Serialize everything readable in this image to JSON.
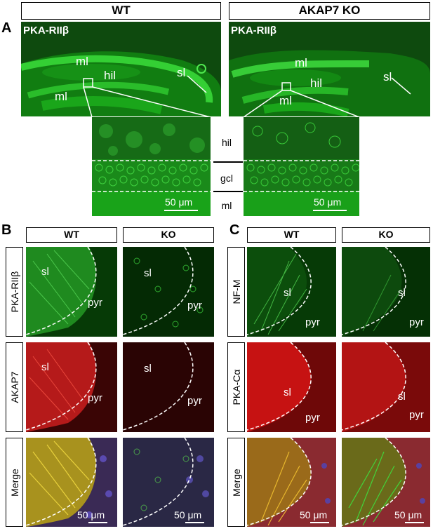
{
  "panel_a": {
    "letter": "A",
    "col_headers": [
      "WT",
      "AKAP7 KO"
    ],
    "stain_label": "PKA-RIIβ",
    "wt_region_labels": [
      "ml",
      "hil",
      "ml",
      "sl"
    ],
    "ko_region_labels": [
      "ml",
      "hil",
      "ml",
      "sl"
    ],
    "layer_labels": [
      "hil",
      "gcl",
      "ml"
    ],
    "scale_label": "50 μm"
  },
  "panel_b": {
    "letter": "B",
    "col_headers": [
      "WT",
      "KO"
    ],
    "row_labels": [
      "PKA-RIIβ",
      "AKAP7",
      "Merge"
    ],
    "region_labels": {
      "sl": "sl",
      "pyr": "pyr"
    },
    "scale_label": "50 μm"
  },
  "panel_c": {
    "letter": "C",
    "col_headers": [
      "WT",
      "KO"
    ],
    "row_labels": [
      "NF-M",
      "PKA-Cα",
      "Merge"
    ],
    "region_labels": {
      "sl": "sl",
      "pyr": "pyr"
    },
    "scale_label": "50 μm"
  },
  "colors": {
    "green_bg": "#0a5a0a",
    "green_bright": "#5fd95f",
    "red_bg": "#6a0c0c",
    "red_bright": "#e03a2a",
    "merge_yellow": "#c9b22a"
  }
}
